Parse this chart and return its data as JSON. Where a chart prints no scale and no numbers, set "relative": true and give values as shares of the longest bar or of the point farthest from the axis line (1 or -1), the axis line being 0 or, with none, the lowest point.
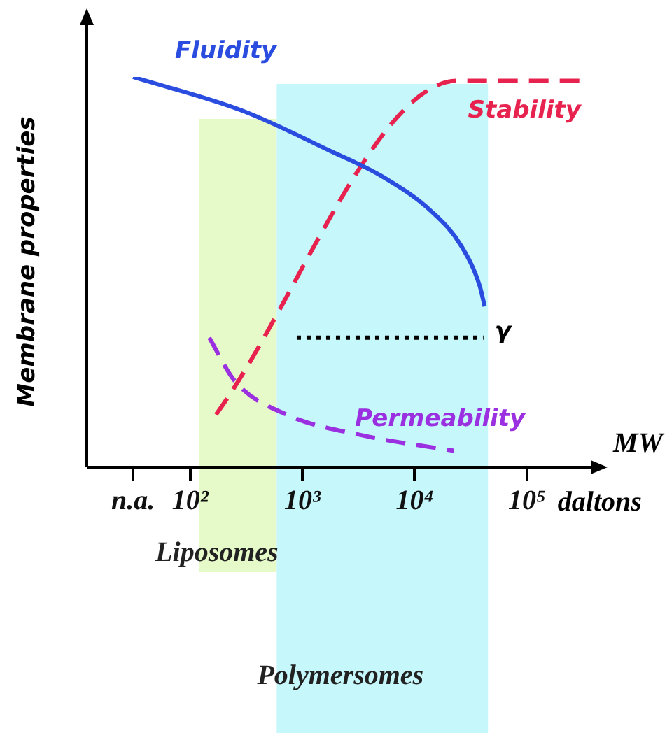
{
  "chart_data": {
    "type": "line",
    "xlabel": "MW",
    "ylabel": "Membrane properties",
    "log": "x",
    "relative": true,
    "grid": false,
    "legend": false,
    "marker": "none",
    "xlim": [
      12,
      370000
    ],
    "xticks": [
      {
        "value": 31,
        "label": "n.a."
      },
      {
        "value": 100,
        "label": "10²"
      },
      {
        "value": 1000,
        "label": "10³"
      },
      {
        "value": 10000,
        "label": "10⁴"
      },
      {
        "value": 100000,
        "label": "10⁵"
      }
    ],
    "annotations": [
      "daltons"
    ],
    "series": [
      {
        "name": "Fluidity",
        "color": "#2a4de0",
        "line_style": "solid",
        "x": [
          31,
          295,
          1780,
          5000,
          14300,
          26000,
          38000,
          42000
        ],
        "values": [
          1.0,
          0.913,
          0.81,
          0.747,
          0.654,
          0.567,
          0.464,
          0.412
        ]
      },
      {
        "name": "Stability",
        "color": "#e8224f",
        "line_style": "dashed",
        "x": [
          170,
          24000,
          320000
        ],
        "values": [
          0.135,
          0.99,
          0.99
        ]
      },
      {
        "name": "Permeability",
        "color": "#9b30e0",
        "line_style": "dashed",
        "x": [
          148,
          250,
          720,
          3240,
          22400
        ],
        "values": [
          0.332,
          0.221,
          0.135,
          0.083,
          0.042
        ]
      },
      {
        "name": "γ",
        "color": "#000000",
        "line_style": "dotted",
        "x": [
          890,
          41000
        ],
        "values": [
          0.332,
          0.332
        ]
      }
    ],
    "bands": [
      {
        "axis": "x",
        "from": 120,
        "to": 590,
        "label": "Liposomes",
        "color": "#e6f9c8"
      },
      {
        "axis": "x",
        "from": 590,
        "to": 45000,
        "label": "Polymersomes",
        "color": "#c6f7fb"
      }
    ]
  }
}
